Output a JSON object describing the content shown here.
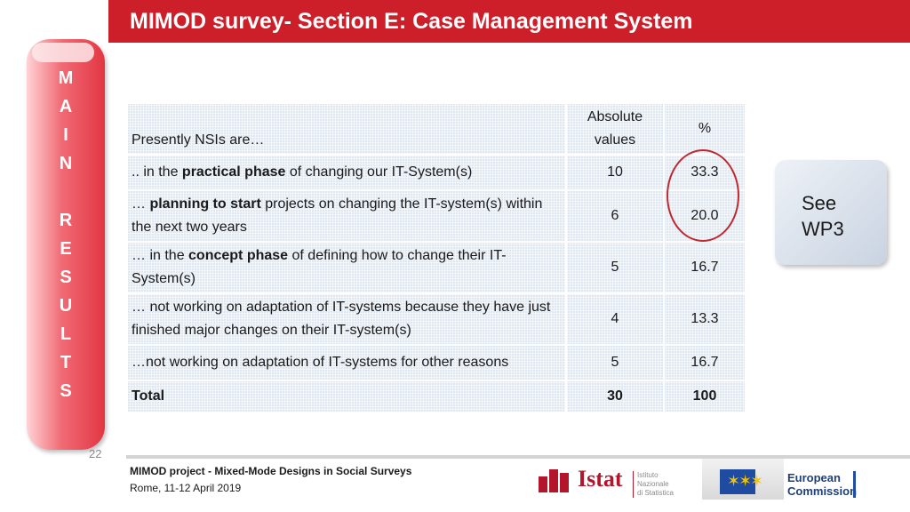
{
  "title": "MIMOD survey- Section E: Case Management System",
  "side_banner": {
    "letters": [
      "M",
      "A",
      "I",
      "N",
      "",
      "R",
      "E",
      "S",
      "U",
      "L",
      "T",
      "S"
    ]
  },
  "slide_number": "22",
  "table": {
    "header": {
      "label": "Presently NSIs are…",
      "abs_line1": "Absolute",
      "abs_line2": "values",
      "pct": "%"
    },
    "rows": [
      {
        "pre": ".. in the ",
        "bold": "practical phase",
        "post": " of changing our IT-System(s)",
        "abs": "10",
        "pct": "33.3"
      },
      {
        "pre": "… ",
        "bold": "planning to start",
        "post": " projects on changing the IT-system(s) within the next two years",
        "abs": "6",
        "pct": "20.0"
      },
      {
        "pre": "… in the ",
        "bold": "concept phase",
        "post": " of defining how to change their IT-System(s)",
        "abs": "5",
        "pct": "16.7"
      },
      {
        "pre": "… not working on adaptation of IT-systems because they have just finished major changes on their IT-system(s)",
        "bold": "",
        "post": "",
        "abs": "4",
        "pct": "13.3"
      },
      {
        "pre": "…not working on adaptation of IT-systems for other reasons",
        "bold": "",
        "post": "",
        "abs": "5",
        "pct": "16.7"
      }
    ],
    "total": {
      "label": "Total",
      "abs": "30",
      "pct": "100"
    }
  },
  "note": {
    "line1": "See",
    "line2": "WP3"
  },
  "footer": {
    "project": "MIMOD project - Mixed-Mode Designs in Social Surveys",
    "location_date": "Rome, 11-12 April 2019"
  },
  "logos": {
    "istat_word": "Istat",
    "istat_sub1": "Istituto Nazionale",
    "istat_sub2": "di Statistica",
    "ec_line1": "European",
    "ec_line2": "Commission"
  },
  "colors": {
    "title_bar": "#cc1f2a",
    "banner": "#e23643",
    "circle": "#c0282f"
  }
}
